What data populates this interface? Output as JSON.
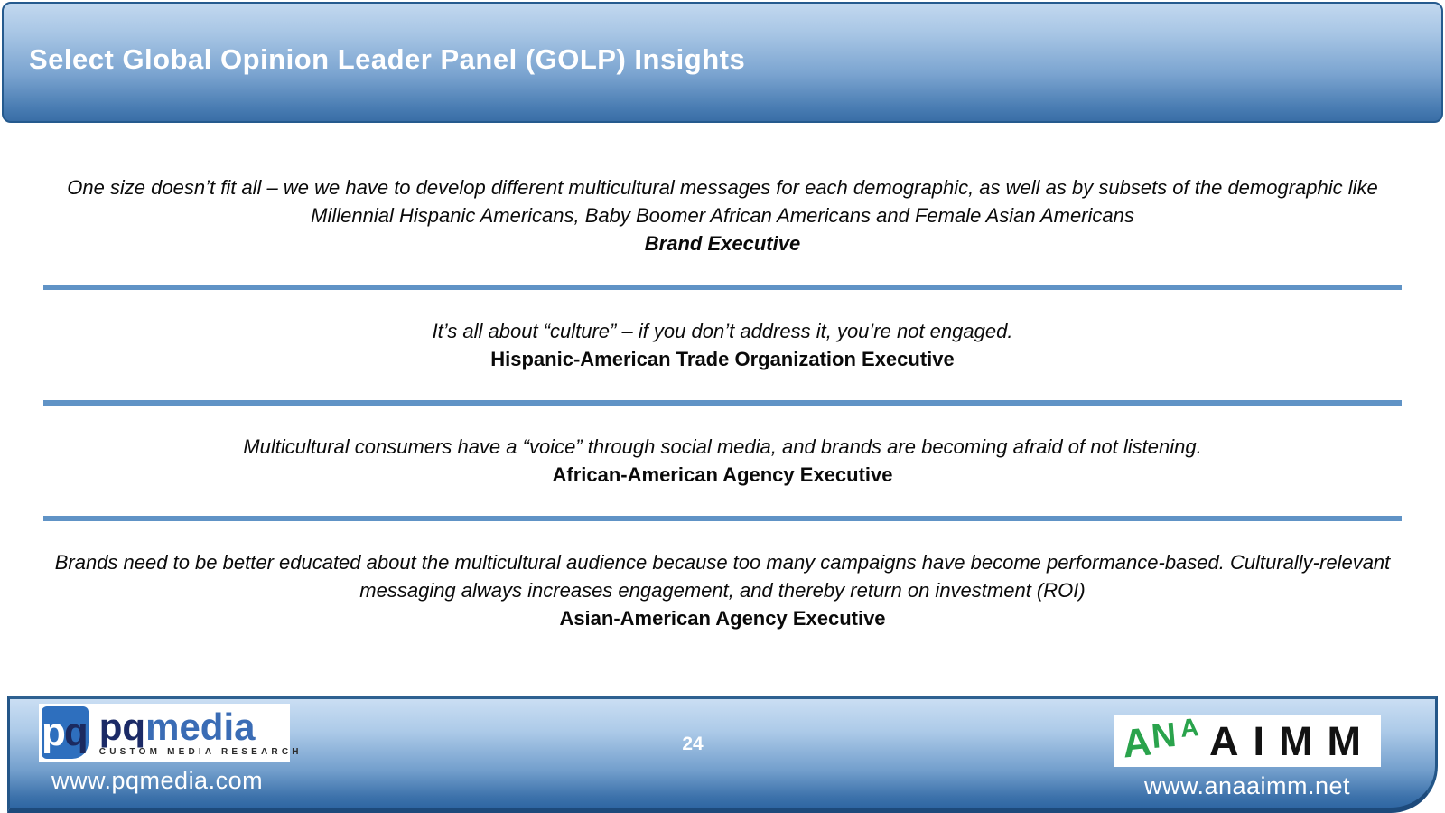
{
  "slide": {
    "title": "Select Global Opinion Leader Panel (GOLP) Insights",
    "page_number": "24"
  },
  "quotes": [
    {
      "text": "One size doesn’t fit all – we we have to develop different multicultural messages for each demographic, as well as by subsets of the demographic like Millennial Hispanic Americans, Baby Boomer African Americans and Female Asian Americans",
      "attribution": "Brand Executive"
    },
    {
      "text": "It’s all about “culture” – if you don’t address it, you’re not engaged.",
      "attribution": "Hispanic-American Trade Organization Executive"
    },
    {
      "text": "Multicultural consumers have a “voice” through social media, and brands are becoming afraid of not listening.",
      "attribution": "African-American Agency Executive"
    },
    {
      "text": "Brands need to be better educated about the multicultural audience because too many campaigns have become performance-based. Culturally-relevant messaging always increases engagement, and thereby return on investment (ROI)",
      "attribution": "Asian-American Agency Executive"
    }
  ],
  "footer": {
    "left_url": "www.pqmedia.com",
    "right_url": "www.anaaimm.net",
    "pq_logo": {
      "mark_p": "p",
      "mark_q": "q",
      "name_pq": "pq",
      "name_media": "media",
      "tagline": "CUSTOM MEDIA RESEARCH"
    },
    "aimm_logo": {
      "ana_letters": [
        "A",
        "N",
        "A"
      ],
      "aimm": "AIMM"
    }
  },
  "colors": {
    "header_gradient_top": "#c2d8ef",
    "header_gradient_bottom": "#3a6ea6",
    "header_border": "#255a8e",
    "divider_blue": "#6093c6",
    "footer_gradient_top": "#cadef3",
    "footer_gradient_bottom": "#2f67a3",
    "pq_square_blue": "#2e6fbe",
    "pq_navy": "#1b2a66",
    "pq_media_blue": "#3a6cb5",
    "ana_green": "#2aa34c",
    "aimm_black": "#121212",
    "quote_text": "#0a0a0a"
  }
}
